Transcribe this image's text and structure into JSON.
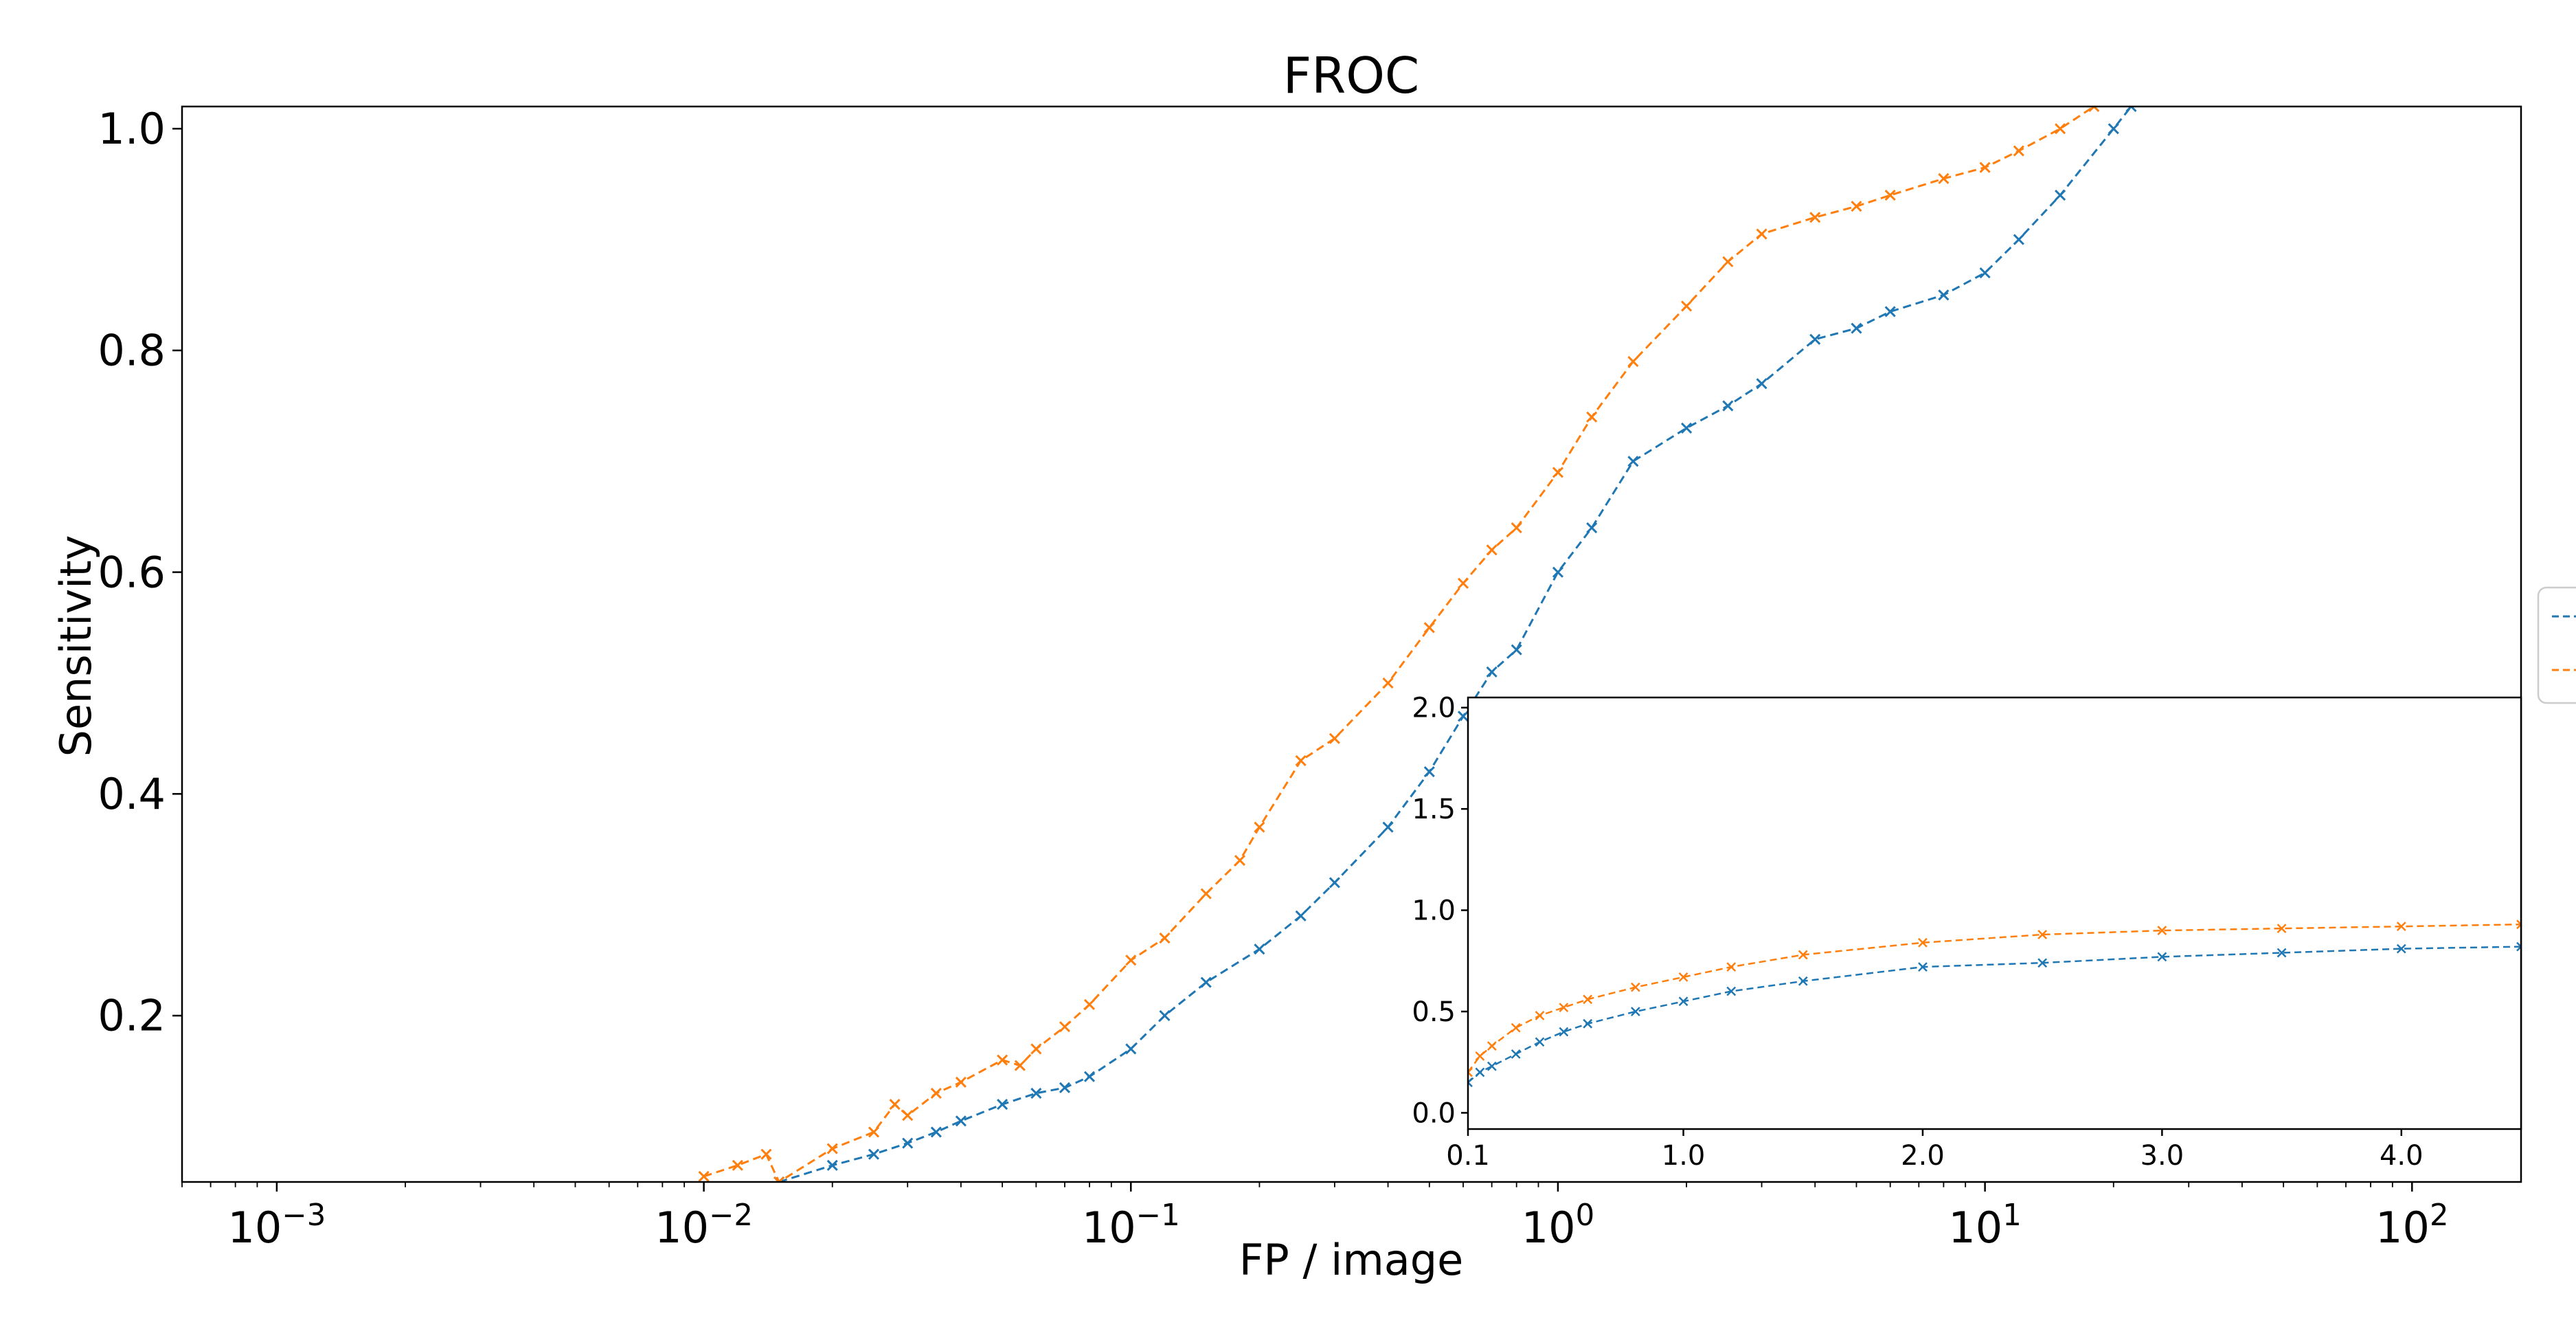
{
  "colors": {
    "series_1": "#1f77b4",
    "series_2": "#ff7f0e",
    "axes": "#000000",
    "background": "#ffffff"
  },
  "chart_data": [
    {
      "type": "line",
      "title": "FROC",
      "xlabel": "FP / image",
      "ylabel": "Sensitivity",
      "xscale": "log",
      "xlim": [
        0.0006,
        180
      ],
      "ylim": [
        0.05,
        1.02
      ],
      "xticks": [
        0.001,
        0.01,
        0.1,
        1,
        10,
        100
      ],
      "xtick_labels": [
        {
          "base": "10",
          "exp": "−3"
        },
        {
          "base": "10",
          "exp": "−2"
        },
        {
          "base": "10",
          "exp": "−1"
        },
        {
          "base": "10",
          "exp": "0"
        },
        {
          "base": "10",
          "exp": "1"
        },
        {
          "base": "10",
          "exp": "2"
        }
      ],
      "yticks": [
        0.2,
        0.4,
        0.6,
        0.8,
        1.0
      ],
      "ytick_labels": [
        "0.2",
        "0.4",
        "0.6",
        "0.8",
        "1.0"
      ],
      "grid": false,
      "legend_position": "right, partially cut off at the figure edge (two dashed-line entries, labels not visible)",
      "line_style": "dashed with x markers",
      "series": [
        {
          "color": "#1f77b4",
          "x": [
            0.015,
            0.02,
            0.025,
            0.03,
            0.035,
            0.04,
            0.05,
            0.06,
            0.07,
            0.08,
            0.1,
            0.12,
            0.15,
            0.2,
            0.25,
            0.3,
            0.4,
            0.5,
            0.6,
            0.7,
            0.8,
            1.0,
            1.2,
            1.5,
            2.0,
            2.5,
            3.0,
            4.0,
            5.0,
            6.0,
            8.0,
            10,
            12,
            15,
            20,
            22
          ],
          "y": [
            0.05,
            0.065,
            0.075,
            0.085,
            0.095,
            0.105,
            0.12,
            0.13,
            0.135,
            0.145,
            0.17,
            0.2,
            0.23,
            0.26,
            0.29,
            0.32,
            0.37,
            0.42,
            0.47,
            0.51,
            0.53,
            0.6,
            0.64,
            0.7,
            0.73,
            0.75,
            0.77,
            0.81,
            0.82,
            0.835,
            0.85,
            0.87,
            0.9,
            0.94,
            1.0,
            1.02
          ]
        },
        {
          "color": "#ff7f0e",
          "x": [
            0.01,
            0.012,
            0.014,
            0.015,
            0.02,
            0.025,
            0.028,
            0.03,
            0.035,
            0.04,
            0.05,
            0.055,
            0.06,
            0.07,
            0.08,
            0.1,
            0.12,
            0.15,
            0.18,
            0.2,
            0.25,
            0.3,
            0.4,
            0.5,
            0.6,
            0.7,
            0.8,
            1.0,
            1.2,
            1.5,
            2.0,
            2.5,
            3.0,
            4.0,
            5.0,
            6.0,
            8.0,
            10,
            12,
            15,
            18
          ],
          "y": [
            0.055,
            0.065,
            0.075,
            0.05,
            0.08,
            0.095,
            0.12,
            0.11,
            0.13,
            0.14,
            0.16,
            0.155,
            0.17,
            0.19,
            0.21,
            0.25,
            0.27,
            0.31,
            0.34,
            0.37,
            0.43,
            0.45,
            0.5,
            0.55,
            0.59,
            0.62,
            0.64,
            0.69,
            0.74,
            0.79,
            0.84,
            0.88,
            0.905,
            0.92,
            0.93,
            0.94,
            0.955,
            0.965,
            0.98,
            1.0,
            1.02
          ]
        }
      ]
    },
    {
      "type": "line",
      "title": "",
      "xlabel": "",
      "ylabel": "",
      "xlim": [
        0.1,
        4.5
      ],
      "ylim": [
        -0.08,
        2.05
      ],
      "xticks": [
        0.1,
        1.0,
        2.0,
        3.0,
        4.0
      ],
      "xtick_labels": [
        "0.1",
        "1.0",
        "2.0",
        "3.0",
        "4.0"
      ],
      "yticks": [
        0.0,
        0.5,
        1.0,
        1.5,
        2.0
      ],
      "ytick_labels": [
        "0.0",
        "0.5",
        "1.0",
        "1.5",
        "2.0"
      ],
      "grid": false,
      "line_style": "dashed with x markers",
      "series": [
        {
          "color": "#1f77b4",
          "x": [
            0.1,
            0.15,
            0.2,
            0.3,
            0.4,
            0.5,
            0.6,
            0.8,
            1.0,
            1.2,
            1.5,
            2.0,
            2.5,
            3.0,
            3.5,
            4.0,
            4.5
          ],
          "y": [
            0.15,
            0.2,
            0.23,
            0.29,
            0.35,
            0.4,
            0.44,
            0.5,
            0.55,
            0.6,
            0.65,
            0.72,
            0.74,
            0.77,
            0.79,
            0.81,
            0.82
          ]
        },
        {
          "color": "#ff7f0e",
          "x": [
            0.1,
            0.15,
            0.2,
            0.3,
            0.4,
            0.5,
            0.6,
            0.8,
            1.0,
            1.2,
            1.5,
            2.0,
            2.5,
            3.0,
            3.5,
            4.0,
            4.5
          ],
          "y": [
            0.2,
            0.28,
            0.33,
            0.42,
            0.48,
            0.52,
            0.56,
            0.62,
            0.67,
            0.72,
            0.78,
            0.84,
            0.88,
            0.9,
            0.91,
            0.92,
            0.93
          ]
        }
      ]
    }
  ]
}
